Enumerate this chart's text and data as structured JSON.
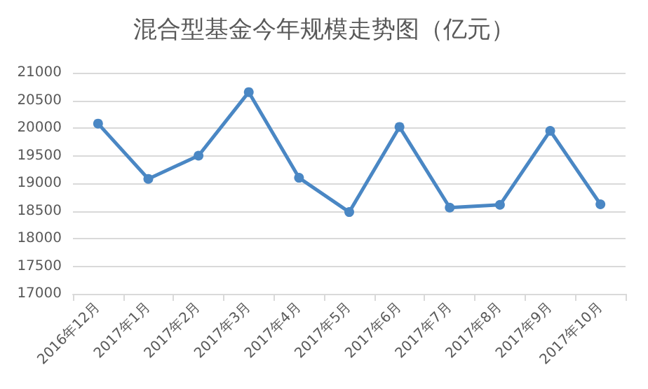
{
  "chart_data": {
    "type": "line",
    "title": "混合型基金今年规模走势图（亿元）",
    "categories": [
      "2016年12月",
      "2017年1月",
      "2017年2月",
      "2017年3月",
      "2017年4月",
      "2017年5月",
      "2017年6月",
      "2017年7月",
      "2017年8月",
      "2017年9月",
      "2017年10月"
    ],
    "series": [
      {
        "color": "#4a87c4",
        "values": [
          20080,
          19080,
          19500,
          20650,
          19100,
          18480,
          20020,
          18560,
          18610,
          19950,
          18620
        ]
      }
    ],
    "ylim": [
      17000,
      21000
    ],
    "yticks": [
      17000,
      17500,
      18000,
      18500,
      19000,
      19500,
      20000,
      20500,
      21000
    ],
    "grid": "y",
    "marker": "circle",
    "line_style": "solid"
  }
}
